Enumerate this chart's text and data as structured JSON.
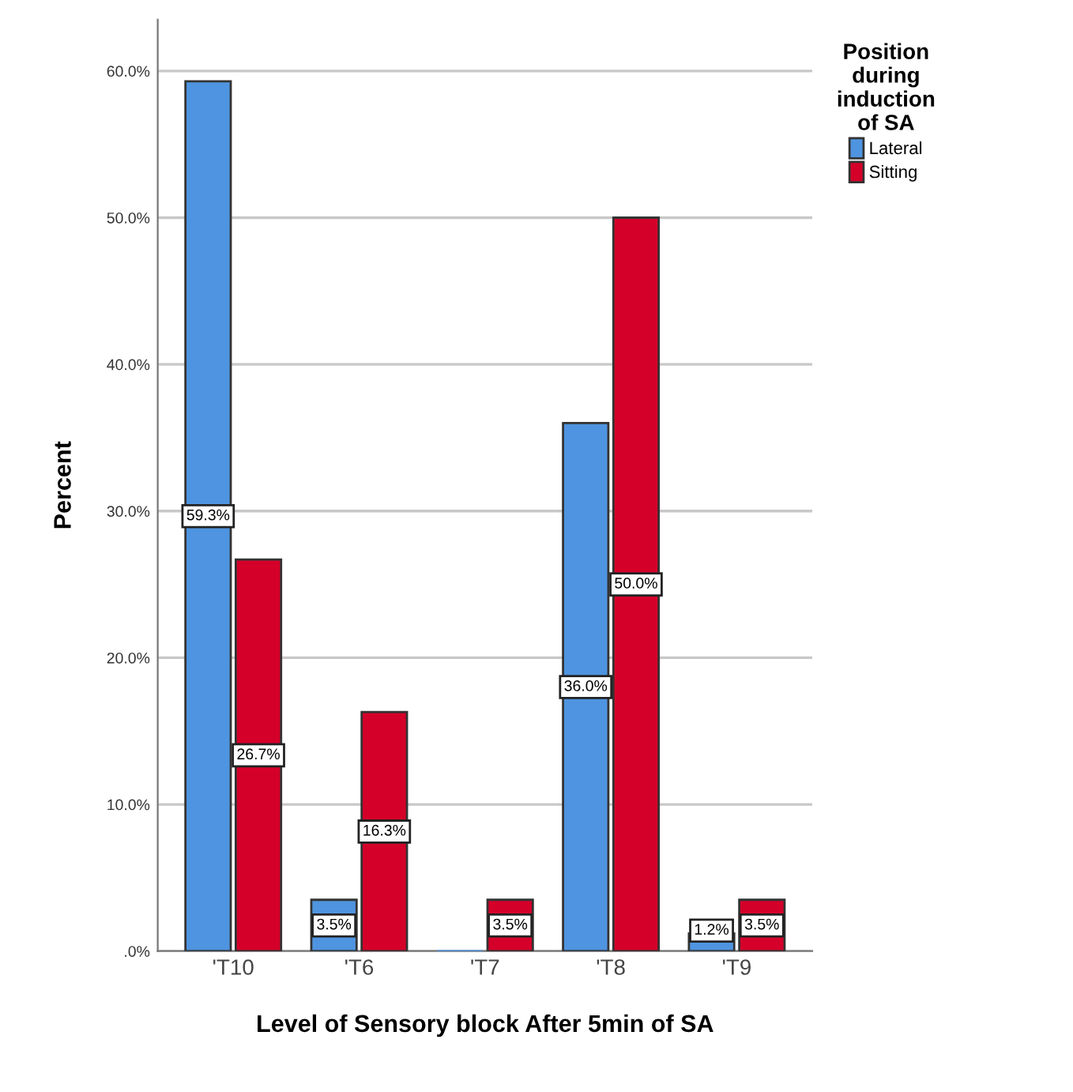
{
  "chart_data": {
    "type": "bar",
    "xlabel": "Level of Sensory block After 5min of SA",
    "ylabel": "Percent",
    "legend_title": "Position\nduring\ninduction\nof SA",
    "categories": [
      "'T10",
      "'T6",
      "'T7",
      "'T8",
      "'T9"
    ],
    "series": [
      {
        "name": "Lateral",
        "color": "#4f94e0",
        "values": [
          59.3,
          3.5,
          0,
          36.0,
          1.2
        ],
        "value_labels": [
          "59.3%",
          "3.5%",
          null,
          "36.0%",
          "1.2%"
        ]
      },
      {
        "name": "Sitting",
        "color": "#d5002a",
        "values": [
          26.7,
          16.3,
          3.5,
          50.0,
          3.5
        ],
        "value_labels": [
          "26.7%",
          "16.3%",
          "3.5%",
          "50.0%",
          "3.5%"
        ]
      }
    ],
    "ylim": [
      0,
      63.5
    ],
    "yticks": [
      {
        "value": 0,
        "label": ".0%"
      },
      {
        "value": 10,
        "label": "10.0%"
      },
      {
        "value": 20,
        "label": "20.0%"
      },
      {
        "value": 30,
        "label": "30.0%"
      },
      {
        "value": 40,
        "label": "40.0%"
      },
      {
        "value": 50,
        "label": "50.0%"
      },
      {
        "value": 60,
        "label": "60.0%"
      }
    ],
    "grid": "y",
    "legend": "top right"
  }
}
